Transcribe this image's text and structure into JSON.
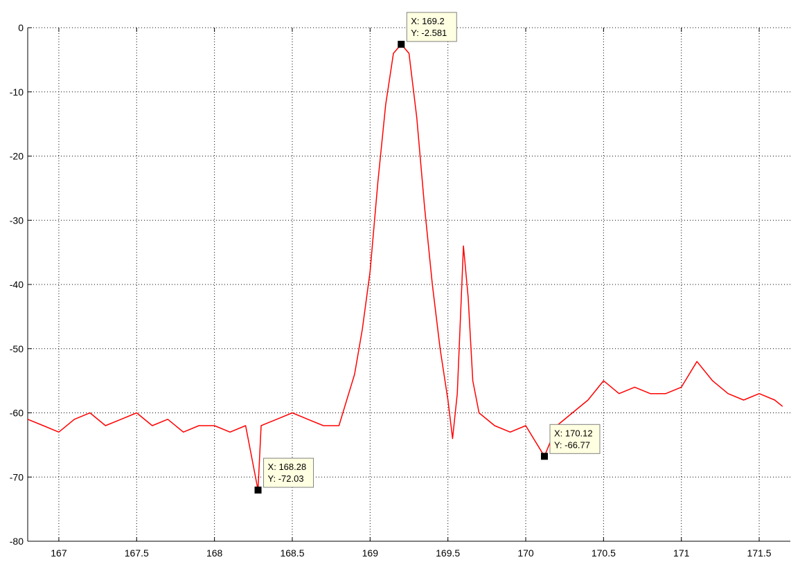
{
  "chart_data": {
    "type": "line",
    "title": "",
    "xlabel": "",
    "ylabel": "",
    "xlim": [
      166.8,
      171.7
    ],
    "ylim": [
      -80,
      0
    ],
    "xticks": [
      167,
      167.5,
      168,
      168.5,
      169,
      169.5,
      170,
      170.5,
      171,
      171.5
    ],
    "xtick_labels": [
      "167",
      "167.5",
      "168",
      "168.5",
      "169",
      "169.5",
      "170",
      "170.5",
      "171",
      "171.5"
    ],
    "yticks": [
      0,
      -10,
      -20,
      -30,
      -40,
      -50,
      -60,
      -70,
      -80
    ],
    "ytick_labels": [
      "0",
      "-10",
      "-20",
      "-30",
      "-40",
      "-50",
      "-60",
      "-70",
      "-80"
    ],
    "grid": true,
    "series": [
      {
        "color": "#ff0000",
        "x": [
          166.8,
          166.9,
          167.0,
          167.1,
          167.2,
          167.3,
          167.4,
          167.5,
          167.6,
          167.7,
          167.8,
          167.9,
          168.0,
          168.1,
          168.2,
          168.28,
          168.3,
          168.4,
          168.5,
          168.6,
          168.7,
          168.8,
          168.85,
          168.9,
          168.95,
          169.0,
          169.05,
          169.1,
          169.15,
          169.2,
          169.25,
          169.3,
          169.35,
          169.4,
          169.45,
          169.5,
          169.53,
          169.56,
          169.6,
          169.63,
          169.66,
          169.7,
          169.8,
          169.9,
          170.0,
          170.12,
          170.2,
          170.3,
          170.4,
          170.5,
          170.6,
          170.7,
          170.8,
          170.9,
          171.0,
          171.1,
          171.2,
          171.3,
          171.4,
          171.5,
          171.6,
          171.65
        ],
        "y": [
          -61,
          -62,
          -63,
          -61,
          -60,
          -62,
          -61,
          -60,
          -62,
          -61,
          -63,
          -62,
          -62,
          -63,
          -62,
          -72.03,
          -62,
          -61,
          -60,
          -61,
          -62,
          -62,
          -58,
          -54,
          -47,
          -38,
          -24,
          -12,
          -4,
          -2.581,
          -4,
          -14,
          -28,
          -40,
          -50,
          -58,
          -64,
          -57,
          -34,
          -42,
          -55,
          -60,
          -62,
          -63,
          -62,
          -66.77,
          -62,
          -60,
          -58,
          -55,
          -57,
          -56,
          -57,
          -57,
          -56,
          -52,
          -55,
          -57,
          -58,
          -57,
          -58,
          -59
        ]
      }
    ],
    "annotations": [
      {
        "x": 169.2,
        "y": -2.581,
        "label_x": "X: 169.2",
        "label_y": "Y: -2.581"
      },
      {
        "x": 168.28,
        "y": -72.03,
        "label_x": "X: 168.28",
        "label_y": "Y: -72.03"
      },
      {
        "x": 170.12,
        "y": -66.77,
        "label_x": "X: 170.12",
        "label_y": "Y: -66.77"
      }
    ]
  }
}
